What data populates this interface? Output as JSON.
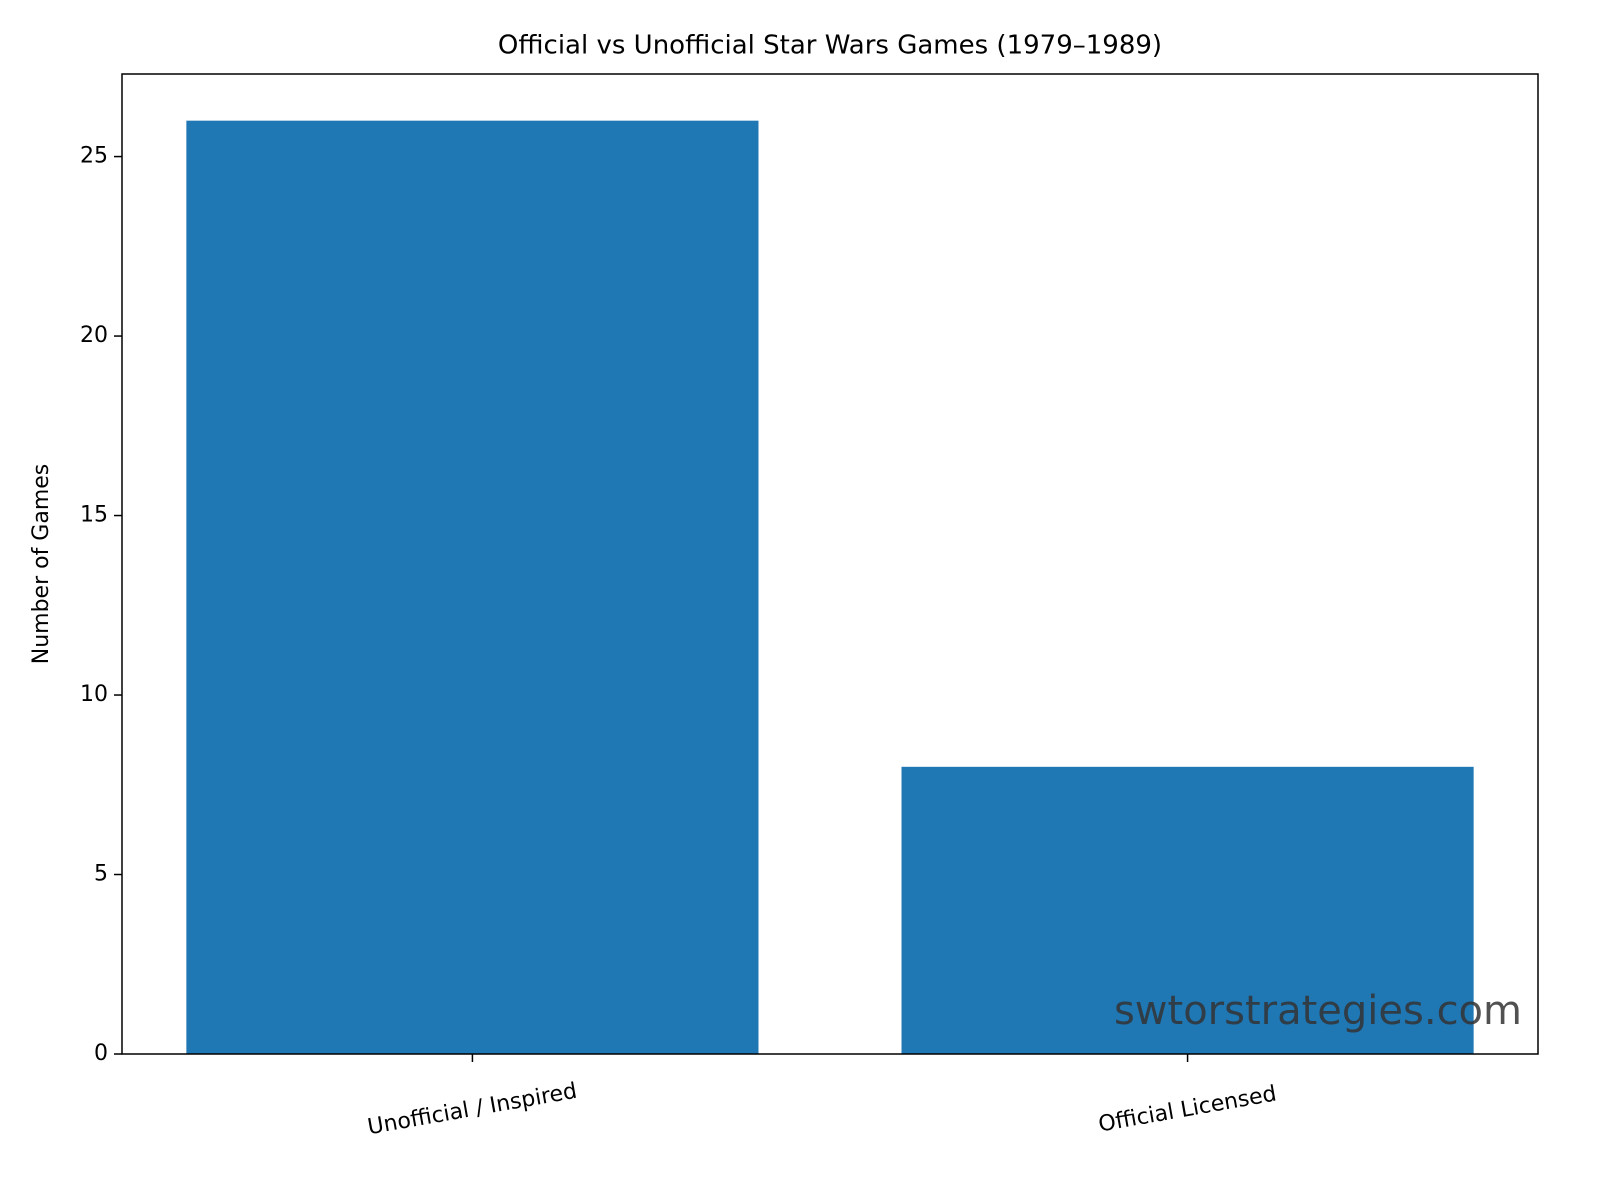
{
  "chart_data": {
    "type": "bar",
    "title": "Official vs Unofficial Star Wars Games (1979–1989)",
    "ylabel": "Number of Games",
    "categories": [
      "Unofficial / Inspired",
      "Official Licensed"
    ],
    "values": [
      26,
      8
    ],
    "color": "#1f77b4",
    "ylim": [
      0,
      27.3
    ],
    "yticks": [
      0,
      5,
      10,
      15,
      20,
      25
    ],
    "grid": false,
    "watermark": "swtorstrategies.com"
  }
}
